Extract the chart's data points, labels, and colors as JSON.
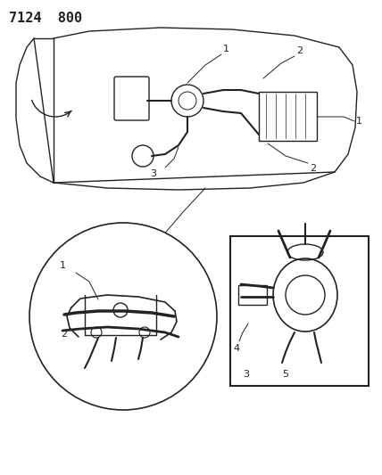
{
  "title_code": "7124  800",
  "bg_color": "#ffffff",
  "line_color": "#222222",
  "figsize": [
    4.28,
    5.33
  ],
  "dpi": 100
}
